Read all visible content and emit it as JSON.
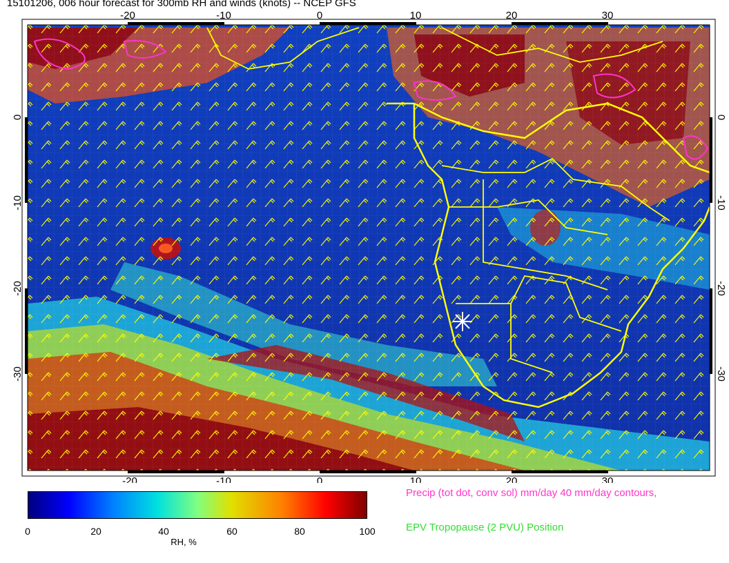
{
  "title": "15101206, 006 hour forecast for 300mb RH and winds (knots) -- NCEP GFS",
  "map": {
    "x_ticks": [
      "-20",
      "-10",
      "0",
      "10",
      "20",
      "30"
    ],
    "y_ticks": [
      "0",
      "-10",
      "-20",
      "-30"
    ],
    "wind_barb_color": "#ffff00",
    "coastline_color": "#ffff00",
    "precip_contour_color": "#ff33cc",
    "marker_color": "#ffffff"
  },
  "colorbar": {
    "ticks": [
      "0",
      "20",
      "40",
      "60",
      "80",
      "100"
    ],
    "label": "RH, %",
    "colors": [
      "#00007f",
      "#0000ff",
      "#0080ff",
      "#00e0e0",
      "#80ff80",
      "#e0e000",
      "#ff8000",
      "#ff0000",
      "#7f0000"
    ]
  },
  "legend": {
    "precip": "Precip (tot dot, conv sol) mm/day 40 mm/day contours,",
    "epv": "EPV Tropopause (2 PVU) Position"
  }
}
